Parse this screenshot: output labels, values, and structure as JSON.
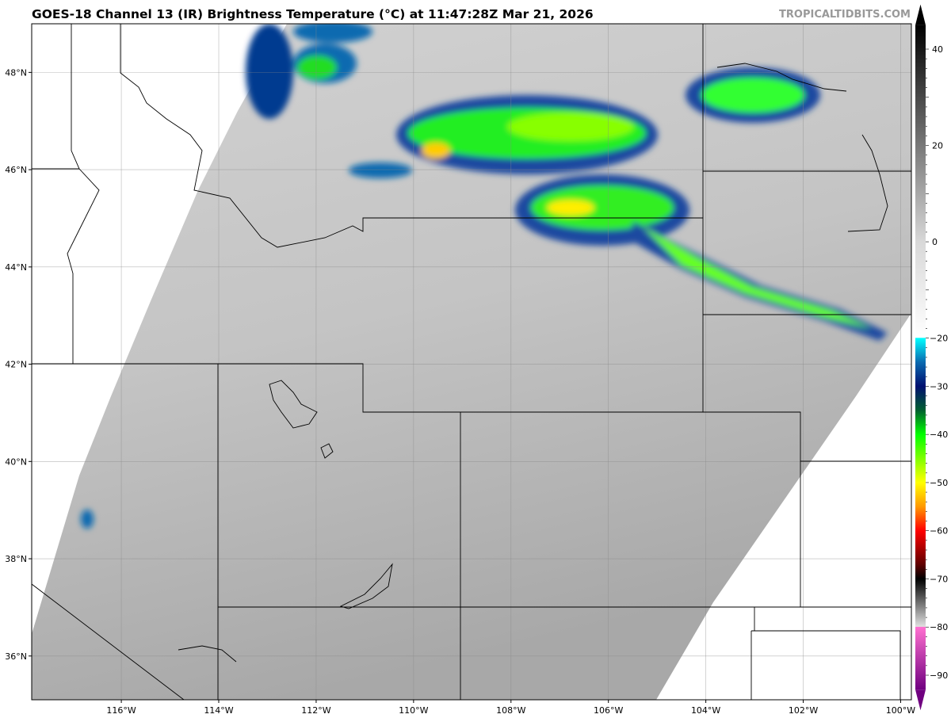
{
  "title": "GOES-18 Channel 13 (IR) Brightness Temperature (°C) at 11:47:28Z Mar 21, 2026",
  "watermark": "TROPICALTIDBITS.COM",
  "map": {
    "lon_ticks": [
      "116°W",
      "114°W",
      "112°W",
      "110°W",
      "108°W",
      "106°W",
      "104°W",
      "102°W",
      "100°W"
    ],
    "lon_values": [
      -116,
      -114,
      -112,
      -110,
      -108,
      -106,
      -104,
      -102,
      -100
    ],
    "lat_ticks": [
      "48°N",
      "46°N",
      "44°N",
      "42°N",
      "40°N",
      "38°N",
      "36°N"
    ],
    "lat_values": [
      48,
      46,
      44,
      42,
      40,
      38,
      36
    ],
    "lon_range": [
      -117.84,
      -99.78
    ],
    "lat_range": [
      35.1,
      49.0
    ]
  },
  "colorbar": {
    "ticks": [
      "40",
      "20",
      "0",
      "−20",
      "−30",
      "−40",
      "−50",
      "−60",
      "−70",
      "−80",
      "−90"
    ],
    "tick_values": [
      40,
      20,
      0,
      -20,
      -30,
      -40,
      -50,
      -60,
      -70,
      -80,
      -90
    ],
    "range": [
      -93,
      45
    ],
    "stops": [
      {
        "v": 45,
        "c": "#000000"
      },
      {
        "v": 0,
        "c": "#d8d8d8"
      },
      {
        "v": -19.9,
        "c": "#ffffff"
      },
      {
        "v": -20,
        "c": "#00ffff"
      },
      {
        "v": -25,
        "c": "#0a6ab0"
      },
      {
        "v": -30,
        "c": "#001070"
      },
      {
        "v": -35,
        "c": "#006030"
      },
      {
        "v": -40,
        "c": "#00ff00"
      },
      {
        "v": -50,
        "c": "#ffff00"
      },
      {
        "v": -55,
        "c": "#ff9900"
      },
      {
        "v": -60,
        "c": "#ff0000"
      },
      {
        "v": -67,
        "c": "#600000"
      },
      {
        "v": -70,
        "c": "#000000"
      },
      {
        "v": -79.9,
        "c": "#e0e0e0"
      },
      {
        "v": -80,
        "c": "#ff70d0"
      },
      {
        "v": -93,
        "c": "#700080"
      }
    ]
  }
}
